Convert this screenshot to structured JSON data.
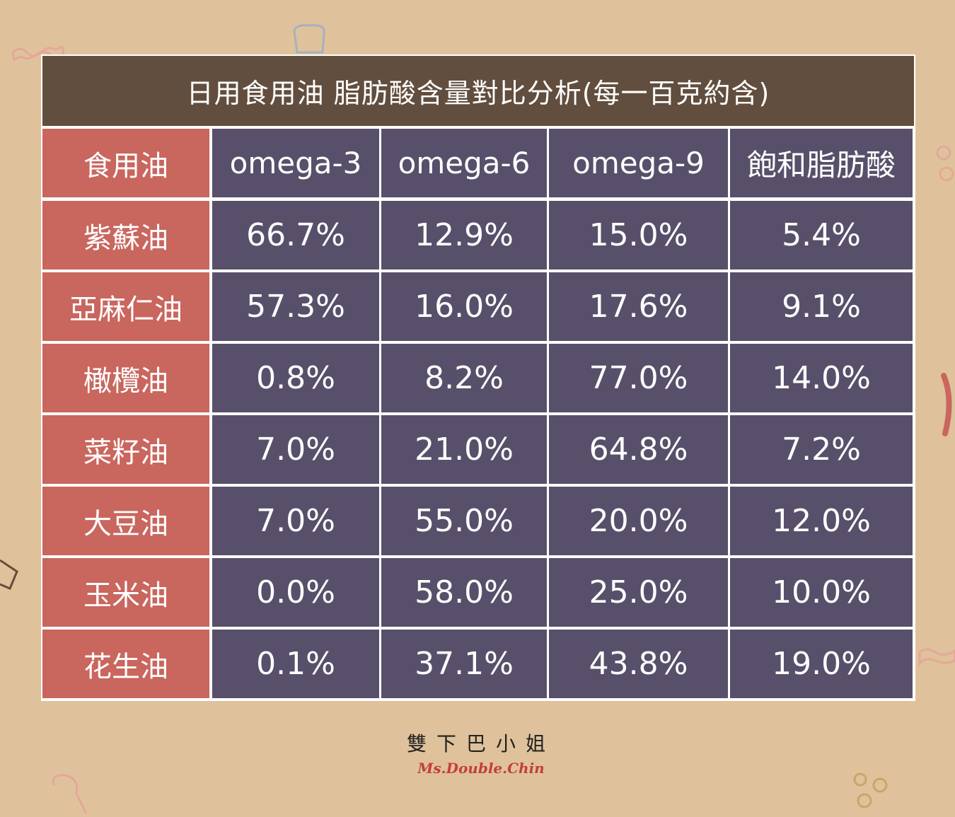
{
  "chart_data": {
    "type": "table",
    "title": "日用食用油 脂肪酸含量對比分析(每一百克約含)",
    "columns": [
      "食用油",
      "omega-3",
      "omega-6",
      "omega-9",
      "飽和脂肪酸"
    ],
    "rows": [
      {
        "name": "紫蘇油",
        "values": [
          "66.7%",
          "12.9%",
          "15.0%",
          "5.4%"
        ]
      },
      {
        "name": "亞麻仁油",
        "values": [
          "57.3%",
          "16.0%",
          "17.6%",
          "9.1%"
        ]
      },
      {
        "name": "橄欖油",
        "values": [
          "0.8%",
          "8.2%",
          "77.0%",
          "14.0%"
        ]
      },
      {
        "name": "菜籽油",
        "values": [
          "7.0%",
          "21.0%",
          "64.8%",
          "7.2%"
        ]
      },
      {
        "name": "大豆油",
        "values": [
          "7.0%",
          "55.0%",
          "20.0%",
          "12.0%"
        ]
      },
      {
        "name": "玉米油",
        "values": [
          "0.0%",
          "58.0%",
          "25.0%",
          "10.0%"
        ]
      },
      {
        "name": "花生油",
        "values": [
          "0.1%",
          "37.1%",
          "43.8%",
          "19.0%"
        ]
      }
    ]
  },
  "signature": {
    "chinese": "雙下巴小姐",
    "english": "Ms.Double.Chin"
  },
  "colors": {
    "background": "#dfc29b",
    "title_bar": "#624e3e",
    "label_cell": "#c9665e",
    "value_cell": "#58506a",
    "signature_text": "#c2403c"
  }
}
